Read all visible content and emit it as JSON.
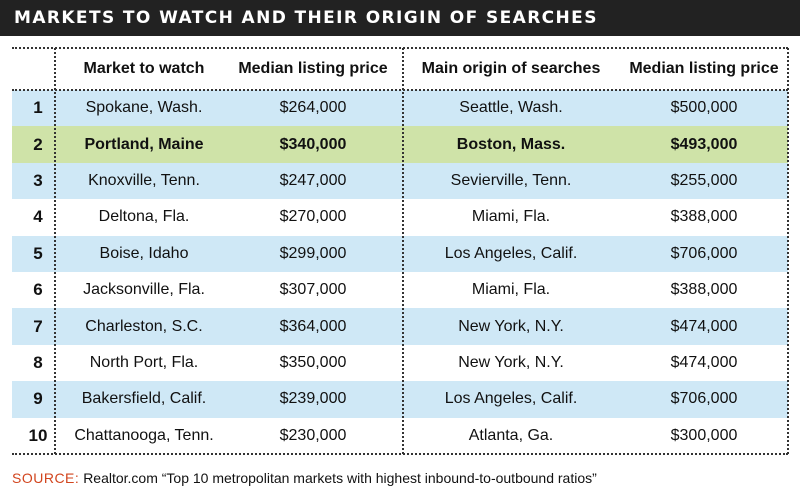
{
  "title": "MARKETS TO WATCH AND THEIR ORIGIN OF SEARCHES",
  "source_label": "SOURCE:",
  "source_text": "Realtor.com “Top 10 metropolitan markets with highest inbound-to-outbound ratios”",
  "colors": {
    "header_bar": "#222222",
    "row_blue": "#cfe8f6",
    "row_highlight": "#cfe3a8",
    "source_label": "#d2451e"
  },
  "chart_data": {
    "type": "table",
    "columns": [
      "",
      "Market to watch",
      "Median listing price",
      "Main origin of searches",
      "Median listing price"
    ],
    "highlight_row": 2,
    "rows": [
      [
        "1",
        "Spokane, Wash.",
        "$264,000",
        "Seattle, Wash.",
        "$500,000"
      ],
      [
        "2",
        "Portland, Maine",
        "$340,000",
        "Boston, Mass.",
        "$493,000"
      ],
      [
        "3",
        "Knoxville, Tenn.",
        "$247,000",
        "Sevierville, Tenn.",
        "$255,000"
      ],
      [
        "4",
        "Deltona, Fla.",
        "$270,000",
        "Miami, Fla.",
        "$388,000"
      ],
      [
        "5",
        "Boise, Idaho",
        "$299,000",
        "Los Angeles, Calif.",
        "$706,000"
      ],
      [
        "6",
        "Jacksonville, Fla.",
        "$307,000",
        "Miami, Fla.",
        "$388,000"
      ],
      [
        "7",
        "Charleston, S.C.",
        "$364,000",
        "New York, N.Y.",
        "$474,000"
      ],
      [
        "8",
        "North Port, Fla.",
        "$350,000",
        "New York, N.Y.",
        "$474,000"
      ],
      [
        "9",
        "Bakersfield, Calif.",
        "$239,000",
        "Los Angeles, Calif.",
        "$706,000"
      ],
      [
        "10",
        "Chattanooga, Tenn.",
        "$230,000",
        "Atlanta, Ga.",
        "$300,000"
      ]
    ]
  }
}
